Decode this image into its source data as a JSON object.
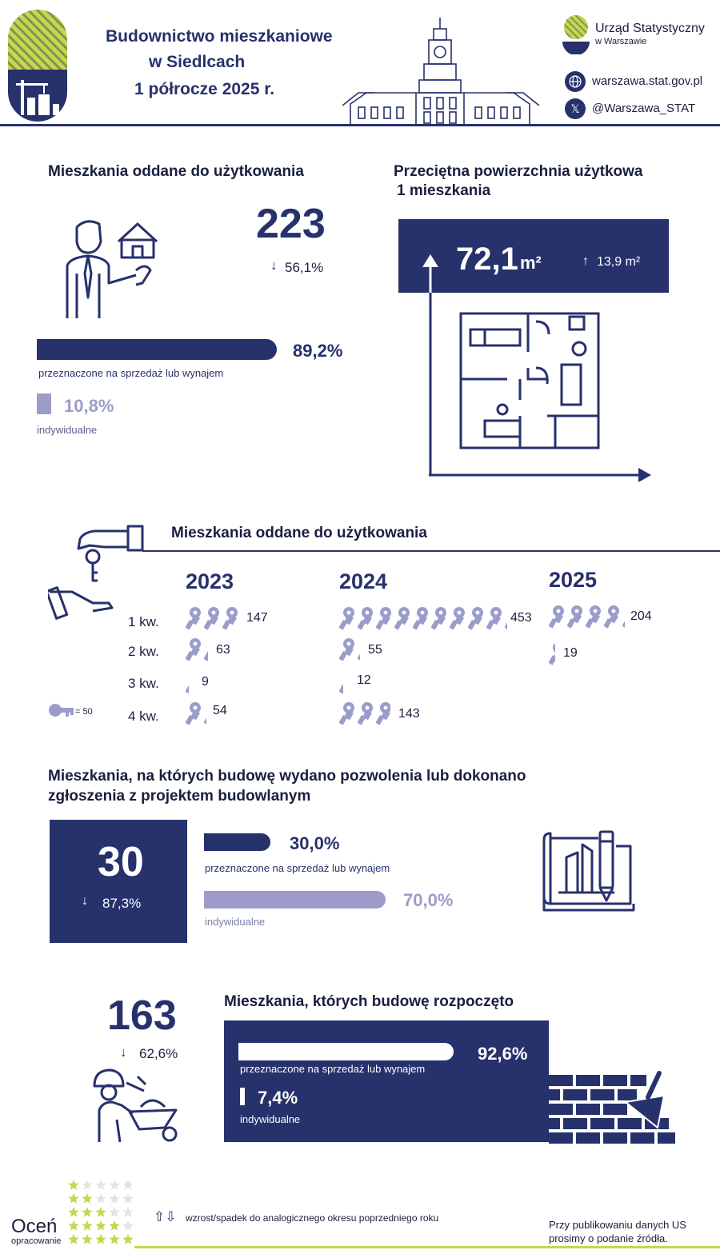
{
  "header": {
    "title_line1": "Budownictwo mieszkaniowe",
    "title_line2": "w Siedlcach",
    "title_line3": "1 półrocze 2025 r.",
    "org_line1": "Urząd Statystyczny",
    "org_line2": "w Warszawie",
    "website": "warszawa.stat.gov.pl",
    "x_handle": "@Warszawa_STAT"
  },
  "completed": {
    "title": "Mieszkania oddane do użytkowania",
    "value": "223",
    "change": "56,1%",
    "change_direction": "down",
    "for_sale_pct": "89,2%",
    "for_sale_fraction": 0.892,
    "for_sale_label": "przeznaczone na sprzedaż lub wynajem",
    "individual_pct": "10,8%",
    "individual_fraction": 0.108,
    "individual_label": "indywidualne"
  },
  "avg_area": {
    "title_line1": "Przeciętna powierzchnia użytkowa",
    "title_line2": "1 mieszkania",
    "value": "72,1",
    "unit": "m²",
    "change": "13,9 m²",
    "change_direction": "up"
  },
  "quarterly": {
    "title": "Mieszkania oddane do użytkowania",
    "years": [
      "2023",
      "2024",
      "2025"
    ],
    "quarter_labels": [
      "1 kw.",
      "2 kw.",
      "3 kw.",
      "4 kw."
    ],
    "legend": "= 50",
    "key_unit": 50,
    "values": {
      "2023": [
        "147",
        "63",
        "9",
        "54"
      ],
      "2024": [
        "453",
        "55",
        "12",
        "143"
      ],
      "2025": [
        "204",
        "19"
      ]
    }
  },
  "permits": {
    "title_line1": "Mieszkania, na których budowę wydano pozwolenia lub dokonano",
    "title_line2": "zgłoszenia z projektem budowlanym",
    "value": "30",
    "change": "87,3%",
    "change_direction": "down",
    "for_sale_pct": "30,0%",
    "for_sale_fraction": 0.3,
    "for_sale_label": "przeznaczone na sprzedaż lub wynajem",
    "individual_pct": "70,0%",
    "individual_fraction": 0.7,
    "individual_label": "indywidualne"
  },
  "started": {
    "title": "Mieszkania, których budowę rozpoczęto",
    "value": "163",
    "change": "62,6%",
    "change_direction": "down",
    "for_sale_pct": "92,6%",
    "for_sale_fraction": 0.926,
    "for_sale_label": "przeznaczone na sprzedaż lub wynajem",
    "individual_pct": "7,4%",
    "individual_fraction": 0.074,
    "individual_label": "indywidualne"
  },
  "footer": {
    "rate_label": "Oceń",
    "rate_sub": "opracowanie",
    "legend_text": "wzrost/spadek do analogicznego okresu poprzedniego roku",
    "source_line1": "Przy publikowaniu danych US",
    "source_line2": "prosimy o podanie źródła."
  },
  "colors": {
    "navy": "#27316c",
    "lavender": "#9c9ccb",
    "lime": "#c3d94e"
  }
}
